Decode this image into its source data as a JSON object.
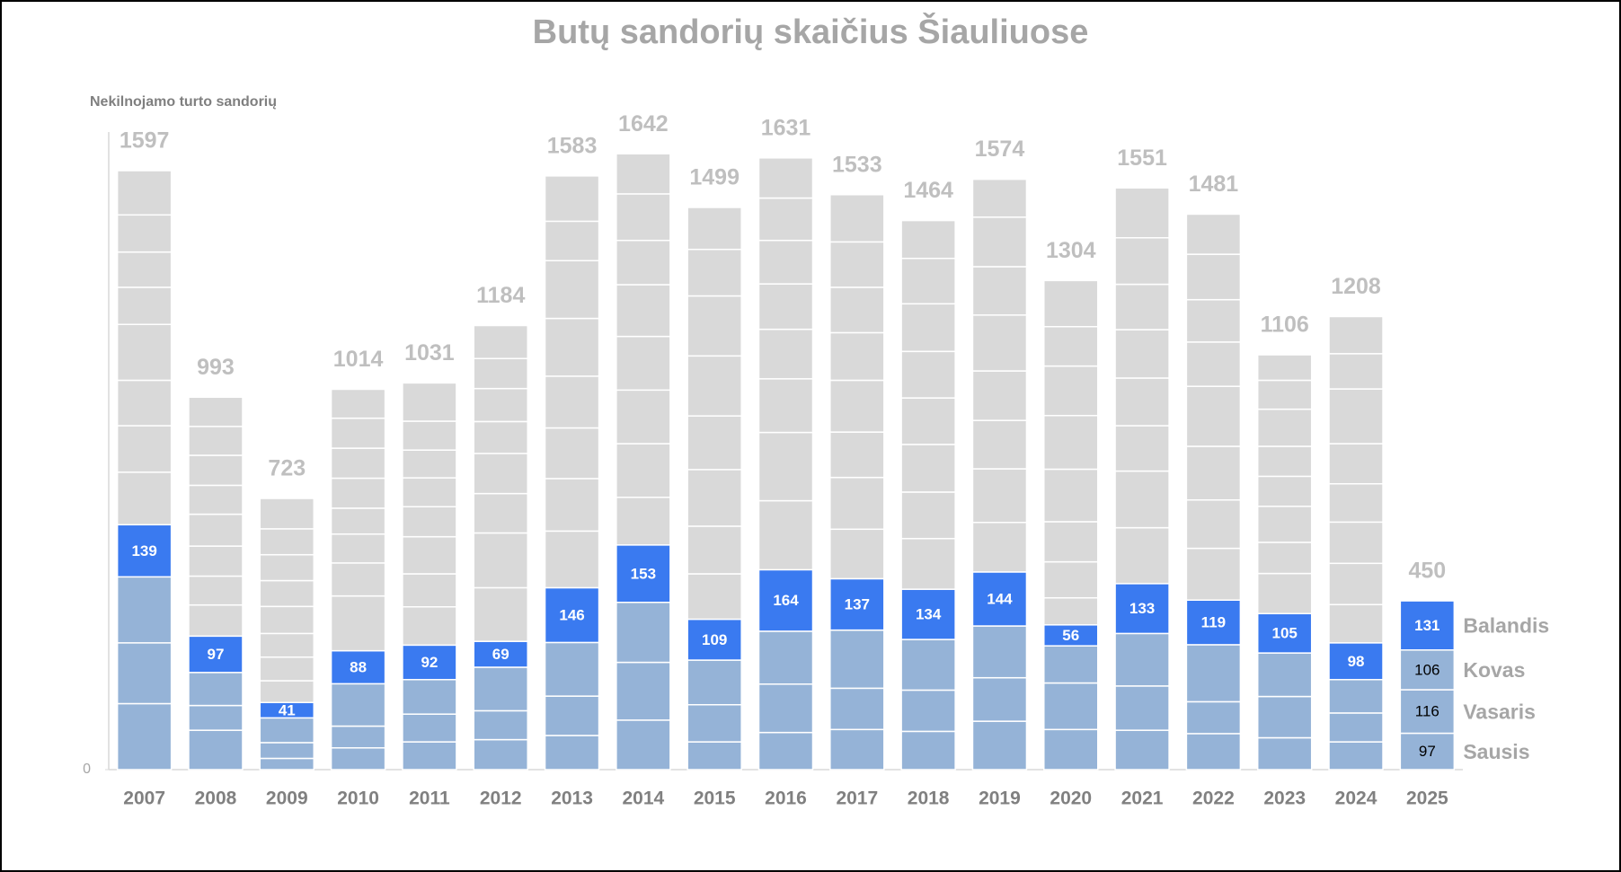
{
  "chart_data": {
    "type": "stacked_bar",
    "title": "Butų sandorių skaičius Šiauliuose",
    "y_label": "Nekilnojamo turto sandorių",
    "categories": [
      "2007",
      "2008",
      "2009",
      "2010",
      "2011",
      "2012",
      "2013",
      "2014",
      "2015",
      "2016",
      "2017",
      "2018",
      "2019",
      "2020",
      "2021",
      "2022",
      "2023",
      "2024",
      "2025"
    ],
    "ylim": [
      0,
      1700
    ],
    "yticks": [
      0
    ],
    "totals": [
      1597,
      993,
      723,
      1014,
      1031,
      1184,
      1583,
      1642,
      1499,
      1631,
      1533,
      1464,
      1574,
      1304,
      1551,
      1481,
      1106,
      1208,
      450
    ],
    "series": [
      {
        "name": "Sausis",
        "color": "#95b3d7",
        "data_labels": "last",
        "label_color": "#000000",
        "values": [
          176,
          105,
          30,
          58,
          74,
          80,
          91,
          132,
          74,
          99,
          107,
          102,
          129,
          107,
          105,
          96,
          85,
          74,
          97
        ]
      },
      {
        "name": "Vasaris",
        "color": "#95b3d7",
        "data_labels": "last",
        "label_color": "#000000",
        "values": [
          162,
          66,
          42,
          58,
          74,
          77,
          105,
          154,
          99,
          129,
          110,
          110,
          116,
          124,
          118,
          85,
          110,
          77,
          116
        ]
      },
      {
        "name": "Kovas",
        "color": "#95b3d7",
        "data_labels": "last",
        "label_color": "#000000",
        "values": [
          176,
          88,
          66,
          113,
          92,
          116,
          143,
          160,
          119,
          141,
          155,
          135,
          138,
          99,
          140,
          152,
          116,
          89,
          106
        ]
      },
      {
        "name": "Balandis",
        "color": "#3a7af0",
        "data_labels": "all",
        "label_color": "#ffffff",
        "values": [
          139,
          97,
          41,
          88,
          92,
          69,
          146,
          153,
          109,
          164,
          137,
          134,
          144,
          56,
          133,
          119,
          105,
          98,
          131
        ]
      },
      {
        "color": "#d9d9d9",
        "values": [
          140,
          83,
          58,
          146,
          102,
          143,
          151,
          127,
          121,
          184,
          132,
          135,
          132,
          72,
          149,
          138,
          107,
          102,
          null
        ]
      },
      {
        "color": "#d9d9d9",
        "values": [
          124,
          77,
          63,
          88,
          88,
          146,
          140,
          143,
          127,
          182,
          138,
          124,
          143,
          96,
          151,
          129,
          83,
          110,
          null
        ]
      },
      {
        "color": "#d9d9d9",
        "values": [
          121,
          80,
          63,
          77,
          99,
          105,
          135,
          143,
          151,
          143,
          121,
          127,
          129,
          107,
          121,
          143,
          96,
          110,
          null
        ]
      },
      {
        "color": "#d9d9d9",
        "values": [
          149,
          85,
          72,
          69,
          80,
          107,
          138,
          143,
          143,
          132,
          138,
          124,
          132,
          140,
          127,
          160,
          80,
          102,
          null
        ]
      },
      {
        "color": "#d9d9d9",
        "values": [
          99,
          77,
          69,
          80,
          77,
          85,
          154,
          138,
          160,
          121,
          127,
          124,
          149,
          143,
          129,
          118,
          80,
          107,
          null
        ]
      },
      {
        "color": "#d9d9d9",
        "values": [
          94,
          80,
          69,
          80,
          74,
          88,
          154,
          118,
          160,
          116,
          121,
          127,
          129,
          132,
          121,
          113,
          99,
          146,
          null
        ]
      },
      {
        "color": "#d9d9d9",
        "values": [
          99,
          77,
          69,
          80,
          77,
          80,
          105,
          124,
          124,
          113,
          121,
          121,
          132,
          105,
          124,
          121,
          77,
          94,
          null
        ]
      },
      {
        "color": "#d9d9d9",
        "values": [
          118,
          78,
          81,
          77,
          102,
          88,
          121,
          107,
          112,
          107,
          126,
          101,
          101,
          123,
          133,
          107,
          68,
          99,
          null
        ]
      }
    ]
  }
}
